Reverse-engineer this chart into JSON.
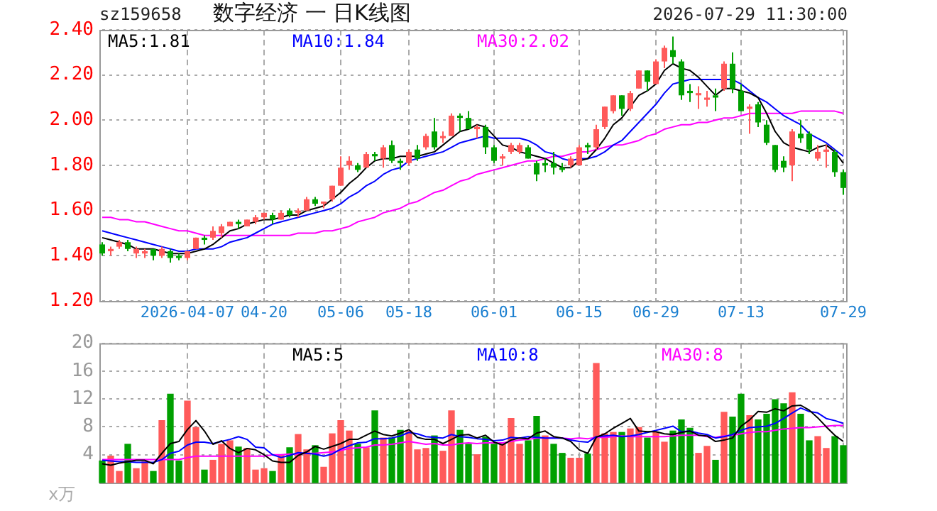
{
  "chart_data": [
    {
      "type": "candlestick",
      "title": "数字经济 一 日K线图",
      "annotations": [
        "sz159658",
        "2026-07-29 11:30:00"
      ],
      "categories": [
        null,
        null,
        null,
        null,
        null,
        null,
        null,
        null,
        null,
        null,
        "2026-04-07",
        null,
        null,
        null,
        null,
        null,
        null,
        null,
        null,
        "04-20",
        null,
        null,
        null,
        null,
        null,
        null,
        null,
        null,
        "05-06",
        null,
        null,
        null,
        null,
        null,
        null,
        null,
        "05-18",
        null,
        null,
        null,
        null,
        null,
        null,
        null,
        null,
        null,
        "06-01",
        null,
        null,
        null,
        null,
        null,
        null,
        null,
        null,
        null,
        "06-15",
        null,
        null,
        null,
        null,
        null,
        null,
        null,
        null,
        "06-29",
        null,
        null,
        null,
        null,
        null,
        null,
        null,
        null,
        null,
        "07-13",
        null,
        null,
        null,
        null,
        null,
        null,
        null,
        null,
        null,
        null,
        null,
        "07-29"
      ],
      "ohlc": [
        [
          1.45,
          1.46,
          1.4,
          1.41
        ],
        [
          1.42,
          1.44,
          1.4,
          1.43
        ],
        [
          1.44,
          1.47,
          1.43,
          1.46
        ],
        [
          1.46,
          1.47,
          1.42,
          1.43
        ],
        [
          1.41,
          1.44,
          1.39,
          1.43
        ],
        [
          1.41,
          1.43,
          1.39,
          1.42
        ],
        [
          1.43,
          1.43,
          1.38,
          1.4
        ],
        [
          1.4,
          1.44,
          1.39,
          1.43
        ],
        [
          1.42,
          1.43,
          1.37,
          1.39
        ],
        [
          1.4,
          1.41,
          1.38,
          1.39
        ],
        [
          1.39,
          1.42,
          1.38,
          1.42
        ],
        [
          1.43,
          1.48,
          1.43,
          1.48
        ],
        [
          1.48,
          1.49,
          1.45,
          1.47
        ],
        [
          1.48,
          1.53,
          1.47,
          1.51
        ],
        [
          1.5,
          1.54,
          1.48,
          1.53
        ],
        [
          1.53,
          1.55,
          1.53,
          1.55
        ],
        [
          1.55,
          1.56,
          1.52,
          1.54
        ],
        [
          1.53,
          1.56,
          1.53,
          1.56
        ],
        [
          1.55,
          1.58,
          1.54,
          1.57
        ],
        [
          1.57,
          1.59,
          1.56,
          1.59
        ],
        [
          1.58,
          1.59,
          1.54,
          1.56
        ],
        [
          1.56,
          1.6,
          1.56,
          1.59
        ],
        [
          1.6,
          1.61,
          1.57,
          1.58
        ],
        [
          1.59,
          1.61,
          1.57,
          1.6
        ],
        [
          1.6,
          1.66,
          1.6,
          1.65
        ],
        [
          1.65,
          1.66,
          1.62,
          1.63
        ],
        [
          1.63,
          1.64,
          1.61,
          1.64
        ],
        [
          1.65,
          1.71,
          1.64,
          1.71
        ],
        [
          1.71,
          1.84,
          1.71,
          1.79
        ],
        [
          1.8,
          1.84,
          1.78,
          1.82
        ],
        [
          1.8,
          1.81,
          1.77,
          1.78
        ],
        [
          1.79,
          1.86,
          1.79,
          1.85
        ],
        [
          1.85,
          1.86,
          1.82,
          1.84
        ],
        [
          1.83,
          1.89,
          1.79,
          1.88
        ],
        [
          1.89,
          1.91,
          1.81,
          1.82
        ],
        [
          1.82,
          1.83,
          1.78,
          1.81
        ],
        [
          1.81,
          1.87,
          1.8,
          1.86
        ],
        [
          1.87,
          1.89,
          1.82,
          1.83
        ],
        [
          1.88,
          1.94,
          1.87,
          1.93
        ],
        [
          1.95,
          2.01,
          1.87,
          1.88
        ],
        [
          1.92,
          1.95,
          1.9,
          1.93
        ],
        [
          1.93,
          2.03,
          1.93,
          2.02
        ],
        [
          2.02,
          2.03,
          1.95,
          2.01
        ],
        [
          2.01,
          2.04,
          1.96,
          1.96
        ],
        [
          1.96,
          1.98,
          1.92,
          1.97
        ],
        [
          1.97,
          1.98,
          1.85,
          1.88
        ],
        [
          1.88,
          1.89,
          1.81,
          1.82
        ],
        [
          1.83,
          1.85,
          1.8,
          1.84
        ],
        [
          1.86,
          1.9,
          1.85,
          1.89
        ],
        [
          1.86,
          1.9,
          1.85,
          1.89
        ],
        [
          1.88,
          1.89,
          1.83,
          1.83
        ],
        [
          1.81,
          1.82,
          1.73,
          1.76
        ],
        [
          1.81,
          1.83,
          1.77,
          1.8
        ],
        [
          1.81,
          1.86,
          1.76,
          1.79
        ],
        [
          1.79,
          1.81,
          1.77,
          1.78
        ],
        [
          1.8,
          1.84,
          1.79,
          1.83
        ],
        [
          1.8,
          1.89,
          1.8,
          1.88
        ],
        [
          1.89,
          1.9,
          1.85,
          1.88
        ],
        [
          1.88,
          1.98,
          1.87,
          1.96
        ],
        [
          1.97,
          2.06,
          1.96,
          2.06
        ],
        [
          2.04,
          2.11,
          2.03,
          2.11
        ],
        [
          2.11,
          2.11,
          2.02,
          2.05
        ],
        [
          2.05,
          2.13,
          2.04,
          2.12
        ],
        [
          2.14,
          2.22,
          2.14,
          2.22
        ],
        [
          2.22,
          2.22,
          2.13,
          2.17
        ],
        [
          2.16,
          2.27,
          2.16,
          2.26
        ],
        [
          2.26,
          2.33,
          2.23,
          2.32
        ],
        [
          2.31,
          2.37,
          2.25,
          2.28
        ],
        [
          2.26,
          2.27,
          2.09,
          2.11
        ],
        [
          2.13,
          2.16,
          2.08,
          2.12
        ],
        [
          2.11,
          2.15,
          2.05,
          2.12
        ],
        [
          2.09,
          2.13,
          2.06,
          2.1
        ],
        [
          2.11,
          2.14,
          2.04,
          2.1
        ],
        [
          2.14,
          2.26,
          2.13,
          2.25
        ],
        [
          2.25,
          2.3,
          2.12,
          2.14
        ],
        [
          2.13,
          2.16,
          2.04,
          2.04
        ],
        [
          2.05,
          2.07,
          1.94,
          2.06
        ],
        [
          2.07,
          2.08,
          1.97,
          1.99
        ],
        [
          1.98,
          2.0,
          1.89,
          1.9
        ],
        [
          1.89,
          1.89,
          1.77,
          1.78
        ],
        [
          1.82,
          1.84,
          1.77,
          1.79
        ],
        [
          1.8,
          1.96,
          1.73,
          1.95
        ],
        [
          1.94,
          2.0,
          1.9,
          1.92
        ],
        [
          1.94,
          1.95,
          1.85,
          1.87
        ],
        [
          1.83,
          1.89,
          1.82,
          1.86
        ],
        [
          1.86,
          1.89,
          1.79,
          1.87
        ],
        [
          1.86,
          1.87,
          1.75,
          1.77
        ],
        [
          1.77,
          1.78,
          1.67,
          1.7
        ]
      ],
      "colors": [
        "#00a000",
        "#ff5a5a",
        "#ff5a5a",
        "#00a000",
        "#ff5a5a",
        "#ff5a5a",
        "#00a000",
        "#ff5a5a",
        "#00a000",
        "#00a000",
        "#ff5a5a",
        "#ff5a5a",
        "#00a000",
        "#ff5a5a",
        "#ff5a5a",
        "#ff5a5a",
        "#00a000",
        "#ff5a5a",
        "#ff5a5a",
        "#ff5a5a",
        "#00a000",
        "#ff5a5a",
        "#00a000",
        "#ff5a5a",
        "#ff5a5a",
        "#00a000",
        "#ff5a5a",
        "#ff5a5a",
        "#ff5a5a",
        "#ff5a5a",
        "#00a000",
        "#ff5a5a",
        "#00a000",
        "#ff5a5a",
        "#00a000",
        "#00a000",
        "#ff5a5a",
        "#00a000",
        "#ff5a5a",
        "#00a000",
        "#ff5a5a",
        "#ff5a5a",
        "#00a000",
        "#00a000",
        "#ff5a5a",
        "#00a000",
        "#00a000",
        "#ff5a5a",
        "#ff5a5a",
        "#ff5a5a",
        "#00a000",
        "#00a000",
        "#00a000",
        "#00a000",
        "#00a000",
        "#ff5a5a",
        "#ff5a5a",
        "#00a000",
        "#ff5a5a",
        "#ff5a5a",
        "#ff5a5a",
        "#00a000",
        "#ff5a5a",
        "#ff5a5a",
        "#00a000",
        "#ff5a5a",
        "#ff5a5a",
        "#00a000",
        "#00a000",
        "#00a000",
        "#ff5a5a",
        "#ff5a5a",
        "#00a000",
        "#ff5a5a",
        "#00a000",
        "#00a000",
        "#ff5a5a",
        "#00a000",
        "#00a000",
        "#00a000",
        "#00a000",
        "#ff5a5a",
        "#00a000",
        "#00a000",
        "#ff5a5a",
        "#ff5a5a",
        "#00a000",
        "#00a000"
      ],
      "series": [
        {
          "name": "MA5:1.81",
          "type": "line",
          "color": "#000000",
          "values": [
            1.48,
            1.47,
            1.46,
            1.45,
            1.43,
            1.43,
            1.43,
            1.42,
            1.41,
            1.41,
            1.41,
            1.42,
            1.43,
            1.45,
            1.48,
            1.51,
            1.52,
            1.54,
            1.55,
            1.56,
            1.56,
            1.57,
            1.58,
            1.58,
            1.6,
            1.61,
            1.62,
            1.65,
            1.68,
            1.72,
            1.75,
            1.79,
            1.82,
            1.83,
            1.83,
            1.84,
            1.84,
            1.84,
            1.85,
            1.86,
            1.89,
            1.92,
            1.95,
            1.96,
            1.98,
            1.97,
            1.93,
            1.89,
            1.88,
            1.86,
            1.85,
            1.84,
            1.83,
            1.81,
            1.79,
            1.79,
            1.82,
            1.83,
            1.87,
            1.92,
            1.98,
            2.01,
            2.06,
            2.11,
            2.13,
            2.16,
            2.22,
            2.25,
            2.23,
            2.22,
            2.19,
            2.15,
            2.11,
            2.14,
            2.14,
            2.13,
            2.12,
            2.1,
            2.03,
            1.95,
            1.9,
            1.88,
            1.87,
            1.86,
            1.88,
            1.89,
            1.86,
            1.81
          ]
        },
        {
          "name": "MA10:1.84",
          "type": "line",
          "color": "#0000ff",
          "values": [
            1.51,
            1.5,
            1.49,
            1.48,
            1.47,
            1.46,
            1.45,
            1.44,
            1.43,
            1.42,
            1.42,
            1.43,
            1.43,
            1.43,
            1.44,
            1.46,
            1.47,
            1.48,
            1.5,
            1.52,
            1.54,
            1.55,
            1.56,
            1.57,
            1.58,
            1.59,
            1.6,
            1.61,
            1.63,
            1.66,
            1.68,
            1.71,
            1.73,
            1.76,
            1.78,
            1.79,
            1.82,
            1.83,
            1.84,
            1.85,
            1.86,
            1.88,
            1.9,
            1.91,
            1.92,
            1.93,
            1.92,
            1.92,
            1.92,
            1.92,
            1.91,
            1.89,
            1.86,
            1.85,
            1.83,
            1.82,
            1.83,
            1.83,
            1.84,
            1.86,
            1.89,
            1.91,
            1.95,
            1.99,
            2.03,
            2.07,
            2.12,
            2.16,
            2.17,
            2.18,
            2.18,
            2.18,
            2.18,
            2.18,
            2.18,
            2.16,
            2.13,
            2.1,
            2.08,
            2.05,
            2.02,
            2.0,
            1.98,
            1.94,
            1.92,
            1.9,
            1.87,
            1.84
          ]
        },
        {
          "name": "MA30:2.02",
          "type": "line",
          "color": "#ff00ff",
          "values": [
            1.57,
            1.57,
            1.56,
            1.56,
            1.55,
            1.55,
            1.54,
            1.53,
            1.52,
            1.51,
            1.51,
            1.5,
            1.49,
            1.49,
            1.49,
            1.49,
            1.49,
            1.49,
            1.49,
            1.49,
            1.49,
            1.49,
            1.49,
            1.5,
            1.5,
            1.5,
            1.51,
            1.51,
            1.52,
            1.53,
            1.55,
            1.56,
            1.57,
            1.59,
            1.6,
            1.61,
            1.63,
            1.64,
            1.66,
            1.68,
            1.69,
            1.71,
            1.73,
            1.74,
            1.76,
            1.77,
            1.78,
            1.79,
            1.8,
            1.81,
            1.82,
            1.82,
            1.83,
            1.84,
            1.84,
            1.85,
            1.86,
            1.86,
            1.87,
            1.88,
            1.89,
            1.89,
            1.9,
            1.91,
            1.93,
            1.94,
            1.96,
            1.97,
            1.98,
            1.98,
            1.99,
            1.99,
            2.0,
            2.01,
            2.01,
            2.02,
            2.03,
            2.03,
            2.03,
            2.03,
            2.03,
            2.03,
            2.04,
            2.04,
            2.04,
            2.04,
            2.04,
            2.03
          ]
        }
      ],
      "ylim": [
        1.2,
        2.4
      ],
      "yticks": [
        {
          "value": 1.2,
          "label": "1.20"
        },
        {
          "value": 1.4,
          "label": "1.40"
        },
        {
          "value": 1.6,
          "label": "1.60"
        },
        {
          "value": 1.8,
          "label": "1.80"
        },
        {
          "value": 2.0,
          "label": "2.00"
        },
        {
          "value": 2.2,
          "label": "2.20"
        },
        {
          "value": 2.4,
          "label": "2.40"
        }
      ],
      "grid": true,
      "legend": "top left"
    },
    {
      "type": "bar",
      "ylabel": "x万",
      "categories": [
        null,
        null,
        null,
        null,
        null,
        null,
        null,
        null,
        null,
        null,
        null,
        null,
        null,
        null,
        null,
        null,
        null,
        null,
        null,
        null,
        null,
        null,
        null,
        null,
        null,
        null,
        null,
        null,
        null,
        null,
        null,
        null,
        null,
        null,
        null,
        null,
        null,
        null,
        null,
        null,
        null,
        null,
        null,
        null,
        null,
        null,
        null,
        null,
        null,
        null,
        null,
        null,
        null,
        null,
        null,
        null,
        null,
        null,
        null,
        null,
        null,
        null,
        null,
        null,
        null,
        null,
        null,
        null,
        null,
        null,
        null,
        null,
        null,
        null,
        null,
        null,
        null,
        null,
        null,
        null,
        null,
        null,
        null,
        null,
        null,
        null,
        null,
        null
      ],
      "series": [
        {
          "type": "bar",
          "values": [
            3.1,
            3.8,
            1.6,
            5.5,
            2.0,
            3.0,
            1.6,
            8.9,
            12.7,
            3.1,
            11.7,
            7.9,
            1.8,
            3.2,
            5.5,
            6.0,
            5.1,
            4.9,
            1.8,
            2.0,
            1.6,
            4.0,
            5.0,
            6.9,
            4.7,
            5.3,
            2.2,
            7.0,
            8.9,
            7.4,
            5.5,
            5.0,
            10.3,
            6.4,
            6.4,
            7.5,
            7.4,
            4.7,
            4.9,
            6.7,
            4.5,
            10.3,
            7.5,
            5.5,
            4.0,
            6.5,
            5.5,
            5.5,
            9.2,
            5.5,
            6.0,
            9.5,
            6.7,
            5.5,
            4.2,
            3.5,
            3.5,
            4.1,
            17.1,
            7.0,
            7.2,
            7.2,
            7.7,
            7.9,
            6.4,
            7.2,
            5.8,
            7.4,
            9.0,
            7.8,
            4.2,
            5.2,
            3.2,
            10.1,
            9.4,
            12.7,
            9.6,
            9.0,
            9.8,
            11.9,
            11.3,
            12.9,
            9.8,
            6.0,
            6.6,
            4.9,
            6.6,
            5.3
          ],
          "colors": [
            "#00a000",
            "#ff5a5a",
            "#ff5a5a",
            "#00a000",
            "#ff5a5a",
            "#ff5a5a",
            "#00a000",
            "#ff5a5a",
            "#00a000",
            "#00a000",
            "#ff5a5a",
            "#ff5a5a",
            "#00a000",
            "#ff5a5a",
            "#ff5a5a",
            "#ff5a5a",
            "#00a000",
            "#ff5a5a",
            "#ff5a5a",
            "#ff5a5a",
            "#00a000",
            "#ff5a5a",
            "#00a000",
            "#ff5a5a",
            "#ff5a5a",
            "#00a000",
            "#ff5a5a",
            "#ff5a5a",
            "#ff5a5a",
            "#ff5a5a",
            "#00a000",
            "#ff5a5a",
            "#00a000",
            "#ff5a5a",
            "#00a000",
            "#00a000",
            "#ff5a5a",
            "#ff5a5a",
            "#ff5a5a",
            "#00a000",
            "#ff5a5a",
            "#ff5a5a",
            "#00a000",
            "#00a000",
            "#ff5a5a",
            "#00a000",
            "#00a000",
            "#ff5a5a",
            "#ff5a5a",
            "#ff5a5a",
            "#00a000",
            "#00a000",
            "#ff5a5a",
            "#00a000",
            "#00a000",
            "#ff5a5a",
            "#ff5a5a",
            "#00a000",
            "#ff5a5a",
            "#ff5a5a",
            "#ff5a5a",
            "#00a000",
            "#ff5a5a",
            "#ff5a5a",
            "#00a000",
            "#ff5a5a",
            "#ff5a5a",
            "#00a000",
            "#00a000",
            "#00a000",
            "#ff5a5a",
            "#ff5a5a",
            "#00a000",
            "#ff5a5a",
            "#00a000",
            "#00a000",
            "#ff5a5a",
            "#00a000",
            "#00a000",
            "#00a000",
            "#00a000",
            "#ff5a5a",
            "#00a000",
            "#00a000",
            "#ff5a5a",
            "#ff5a5a",
            "#00a000",
            "#00a000"
          ]
        },
        {
          "name": "MA5:5",
          "type": "line",
          "color": "#000000",
          "values": [
            2.7,
            2.5,
            2.8,
            3.0,
            3.2,
            3.2,
            2.7,
            4.2,
            5.6,
            5.9,
            7.6,
            8.9,
            7.4,
            5.5,
            6.0,
            4.9,
            4.3,
            4.9,
            4.7,
            4.0,
            3.1,
            2.9,
            2.9,
            3.9,
            4.4,
            5.2,
            4.8,
            5.2,
            5.6,
            6.2,
            6.2,
            6.8,
            7.4,
            6.9,
            6.7,
            7.1,
            7.6,
            6.5,
            6.2,
            6.2,
            5.6,
            6.2,
            6.8,
            6.9,
            6.4,
            6.8,
            5.8,
            5.4,
            6.1,
            6.4,
            6.3,
            7.1,
            7.4,
            6.6,
            6.4,
            5.9,
            4.7,
            4.2,
            6.5,
            7.0,
            7.8,
            8.5,
            9.2,
            7.4,
            7.3,
            7.3,
            7.0,
            6.9,
            7.2,
            7.4,
            6.8,
            6.7,
            5.9,
            6.1,
            6.4,
            8.1,
            9.0,
            10.2,
            10.1,
            10.6,
            10.3,
            11.0,
            11.1,
            10.4,
            9.3,
            8.0,
            6.8,
            5.9
          ]
        },
        {
          "name": "MA10:8",
          "type": "line",
          "color": "#0000ff",
          "values": [
            3.2,
            3.1,
            3.0,
            3.0,
            2.9,
            2.9,
            2.9,
            3.3,
            4.2,
            4.5,
            5.4,
            5.8,
            5.8,
            5.6,
            5.9,
            6.2,
            6.6,
            6.2,
            5.1,
            5.0,
            4.0,
            3.6,
            3.9,
            4.3,
            4.2,
            4.1,
            3.8,
            4.1,
            4.8,
            5.3,
            5.7,
            5.8,
            6.3,
            6.3,
            6.4,
            6.7,
            7.2,
            7.0,
            6.6,
            6.5,
            6.4,
            6.9,
            6.6,
            6.5,
            6.3,
            6.2,
            6.0,
            6.1,
            6.5,
            6.4,
            6.6,
            6.5,
            6.4,
            6.4,
            6.4,
            6.1,
            5.9,
            5.8,
            6.6,
            6.7,
            6.8,
            6.6,
            6.7,
            6.9,
            7.2,
            7.5,
            7.8,
            8.1,
            7.3,
            7.4,
            7.1,
            6.9,
            6.4,
            6.6,
            6.9,
            7.5,
            7.9,
            8.0,
            8.1,
            8.5,
            9.2,
            10.0,
            10.7,
            10.2,
            10.0,
            9.2,
            8.9,
            8.5
          ]
        },
        {
          "name": "MA30:8",
          "type": "line",
          "color": "#ff00ff",
          "values": [
            3.3,
            3.3,
            3.3,
            3.3,
            3.3,
            3.3,
            3.3,
            3.3,
            3.3,
            3.3,
            3.6,
            3.8,
            3.8,
            3.8,
            3.8,
            3.8,
            3.8,
            3.8,
            3.8,
            3.8,
            4.0,
            4.0,
            4.1,
            4.1,
            4.2,
            4.2,
            4.3,
            4.4,
            4.6,
            4.9,
            5.0,
            5.1,
            5.4,
            5.4,
            5.5,
            5.7,
            5.9,
            5.7,
            5.5,
            5.6,
            5.4,
            5.4,
            5.6,
            5.7,
            5.6,
            5.7,
            5.7,
            5.7,
            5.9,
            6.1,
            6.2,
            6.4,
            6.4,
            6.4,
            6.4,
            6.3,
            6.4,
            6.3,
            6.5,
            6.5,
            6.6,
            6.7,
            6.6,
            6.6,
            6.6,
            6.6,
            6.6,
            6.7,
            6.8,
            6.8,
            6.8,
            6.6,
            6.5,
            6.7,
            6.8,
            7.0,
            7.2,
            7.3,
            7.3,
            7.5,
            7.7,
            7.8,
            7.9,
            7.9,
            8.0,
            8.1,
            8.2,
            8.2
          ]
        }
      ],
      "ylim": [
        0,
        20
      ],
      "yticks": [
        4,
        8,
        12,
        16,
        20
      ],
      "grid": true,
      "legend": "top left",
      "tick_labels": "y"
    }
  ]
}
